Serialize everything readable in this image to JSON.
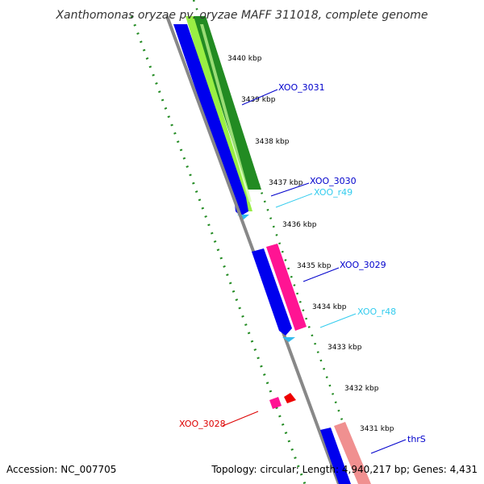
{
  "title": "Xanthomonas oryzae pv. oryzae MAFF 311018, complete genome",
  "footer": {
    "accession": "Accession: NC_007705",
    "summary": "Topology: circular; Length: 4,940,217 bp; Genes: 4,431"
  },
  "ticks": [
    "3440 kbp",
    "3439 kbp",
    "3438 kbp",
    "3437 kbp",
    "3436 kbp",
    "3435 kbp",
    "3434 kbp",
    "3433 kbp",
    "3432 kbp",
    "3431 kbp"
  ],
  "features": [
    {
      "label": "XOO_3031",
      "color": "#0000cc"
    },
    {
      "label": "XOO_3030",
      "color": "#0000cc"
    },
    {
      "label": "XOO_r49",
      "color": "#33ccee"
    },
    {
      "label": "XOO_3029",
      "color": "#0000cc"
    },
    {
      "label": "XOO_r48",
      "color": "#33ccee"
    },
    {
      "label": "XOO_3028",
      "color": "#dd0000"
    },
    {
      "label": "thrS",
      "color": "#0000cc"
    }
  ],
  "colors": {
    "cds": "#0000ee",
    "rna": "#33bbee",
    "gc_content": "#228b22",
    "gc_skew_light": "#99ee44",
    "pink": "#ff1493",
    "light_pink": "#f09090",
    "red": "#ee0000",
    "backbone": "#888888",
    "tick_dots": "#228b22"
  }
}
